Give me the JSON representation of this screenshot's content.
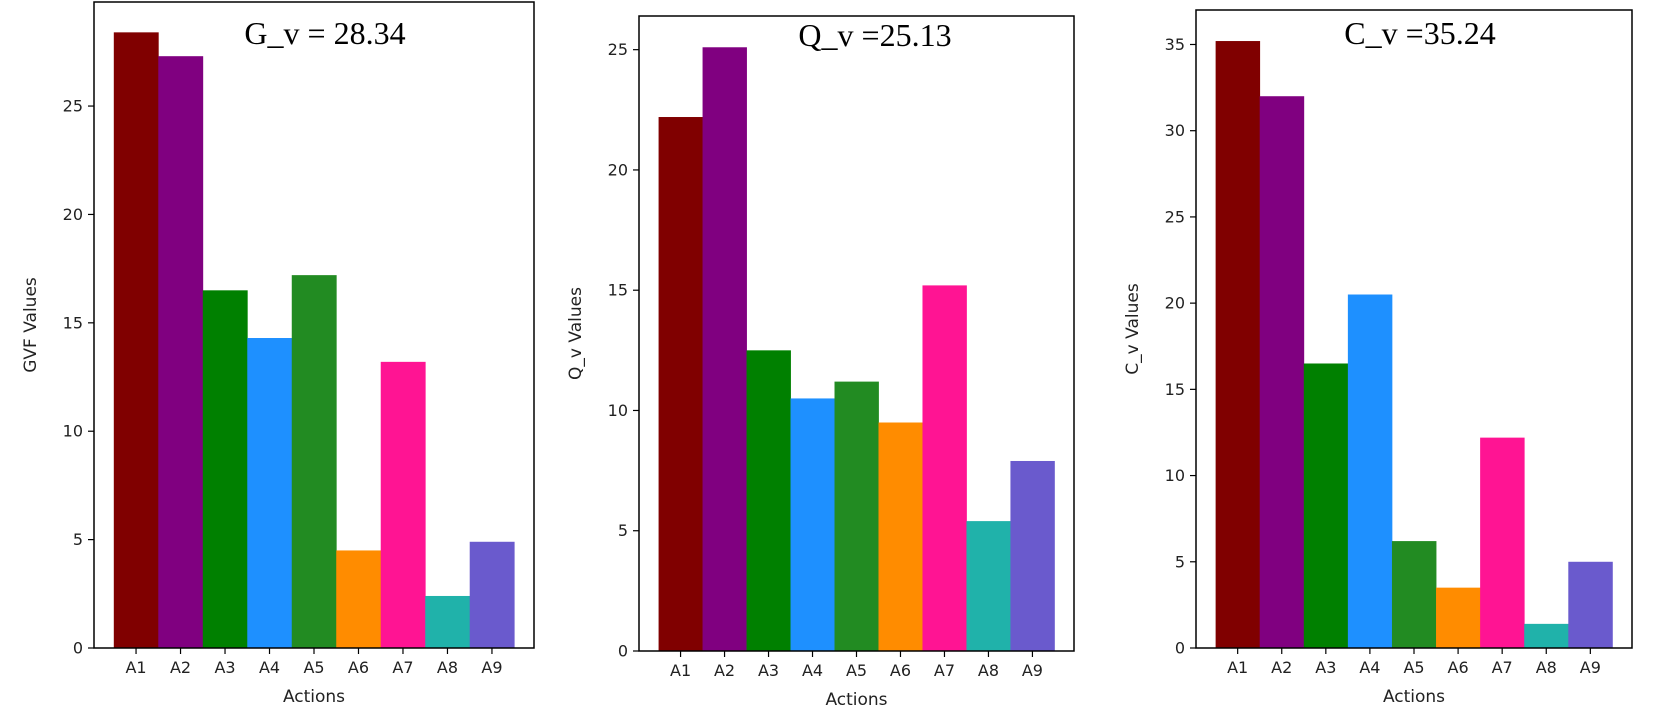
{
  "chart_data": [
    {
      "type": "bar",
      "title": "G_v = 28.34",
      "xlabel": "Actions",
      "ylabel": "GVF Values",
      "categories": [
        "A1",
        "A2",
        "A3",
        "A4",
        "A5",
        "A6",
        "A7",
        "A8",
        "A9"
      ],
      "values": [
        28.4,
        27.3,
        16.5,
        14.3,
        17.2,
        4.5,
        13.2,
        2.4,
        4.9
      ],
      "ylim": [
        0,
        29.8
      ],
      "yticks": [
        0,
        5,
        10,
        15,
        20,
        25
      ],
      "grid": false
    },
    {
      "type": "bar",
      "title": "Q_v =25.13",
      "xlabel": "Actions",
      "ylabel": "Q_v Values",
      "categories": [
        "A1",
        "A2",
        "A3",
        "A4",
        "A5",
        "A6",
        "A7",
        "A8",
        "A9"
      ],
      "values": [
        22.2,
        25.1,
        12.5,
        10.5,
        11.2,
        9.5,
        15.2,
        5.4,
        7.9
      ],
      "ylim": [
        0,
        26.4
      ],
      "yticks": [
        0,
        5,
        10,
        15,
        20,
        25
      ],
      "grid": false
    },
    {
      "type": "bar",
      "title": "C_v =35.24",
      "xlabel": "Actions",
      "ylabel": "C_v Values",
      "categories": [
        "A1",
        "A2",
        "A3",
        "A4",
        "A5",
        "A6",
        "A7",
        "A8",
        "A9"
      ],
      "values": [
        35.2,
        32.0,
        16.5,
        20.5,
        6.2,
        3.5,
        12.2,
        1.4,
        5.0
      ],
      "ylim": [
        0,
        37.0
      ],
      "yticks": [
        0,
        5,
        10,
        15,
        20,
        25,
        30,
        35
      ],
      "grid": false
    }
  ],
  "colors": {
    "A1": "#800000",
    "A2": "#800080",
    "A3": "#008000",
    "A4": "#1e90ff",
    "A5": "#228b22",
    "A6": "#ff8c00",
    "A7": "#ff1493",
    "A8": "#20b2aa",
    "A9": "#6a5acd"
  }
}
